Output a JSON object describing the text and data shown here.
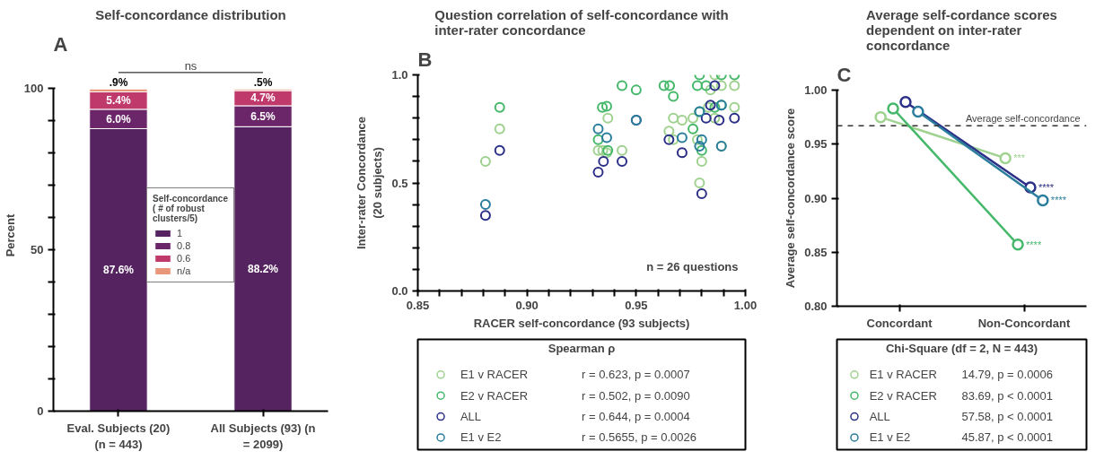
{
  "chart_data": [
    {
      "type": "bar",
      "stacked": true,
      "title": "Self-concordance distribution",
      "ylabel": "Percent",
      "legend_title": "Self-concordance ( # of robust clusters/5)",
      "legend": "center",
      "categories": [
        "Eval. Subjects (20) (n = 443)",
        "All Subjects (93) (n = 2099)"
      ],
      "ylim": [
        0,
        100
      ],
      "yticks": [
        0,
        {
          "value": 10,
          "label": null
        },
        {
          "value": 20,
          "label": null
        },
        {
          "value": 30,
          "label": null
        },
        {
          "value": 40,
          "label": null
        },
        50,
        {
          "value": 60,
          "label": null
        },
        {
          "value": 70,
          "label": null
        },
        {
          "value": 80,
          "label": null
        },
        {
          "value": 90,
          "label": null
        },
        100
      ],
      "series": [
        {
          "name": "1",
          "color": "#55235f",
          "values": [
            87.6,
            88.2
          ],
          "value_labels": [
            "87.6%",
            "88.2%"
          ]
        },
        {
          "name": "0.8",
          "color": "#6b2569",
          "values": [
            6.0,
            6.5
          ],
          "value_labels": [
            "6.0%",
            "6.5%"
          ]
        },
        {
          "name": "0.6",
          "color": "#bf3a6b",
          "values": [
            5.4,
            4.7
          ],
          "value_labels": [
            "5.4%",
            "4.7%"
          ]
        },
        {
          "name": "n/a",
          "color": "#e9967a",
          "values": [
            0.9,
            0.5
          ],
          "value_labels": [
            ".9%",
            ".5%"
          ]
        }
      ],
      "annotations": [
        "A",
        "ns"
      ],
      "grid": false
    },
    {
      "type": "scatter",
      "title": "Question correlation of self-concordance with inter-rater concordance",
      "xlabel": "RACER self-concordance (93 subjects)",
      "ylabel": "Inter-rater Concordance (20 subjects)",
      "legend_title": "Spearman ρ",
      "legend": "bottom",
      "marker": "circle",
      "grid": false,
      "xlim": [
        0.85,
        1.0
      ],
      "xticks": [
        {
          "value": 0.85,
          "label": "0.85"
        },
        {
          "value": 0.86,
          "label": null
        },
        {
          "value": 0.87,
          "label": null
        },
        {
          "value": 0.88,
          "label": null
        },
        {
          "value": 0.89,
          "label": null
        },
        {
          "value": 0.9,
          "label": "0.90"
        },
        {
          "value": 0.91,
          "label": null
        },
        {
          "value": 0.92,
          "label": null
        },
        {
          "value": 0.93,
          "label": null
        },
        {
          "value": 0.94,
          "label": null
        },
        {
          "value": 0.95,
          "label": "0.95"
        },
        {
          "value": 0.96,
          "label": null
        },
        {
          "value": 0.97,
          "label": null
        },
        {
          "value": 0.98,
          "label": null
        },
        {
          "value": 0.99,
          "label": null
        },
        {
          "value": 1.0,
          "label": "1.00"
        }
      ],
      "ylim": [
        0,
        1.0
      ],
      "yticks": [
        {
          "value": 0.0,
          "label": "0.0"
        },
        {
          "value": 0.1,
          "label": null
        },
        {
          "value": 0.2,
          "label": null
        },
        {
          "value": 0.3,
          "label": null
        },
        {
          "value": 0.4,
          "label": null
        },
        0.5,
        {
          "value": 0.6,
          "label": null
        },
        {
          "value": 0.7,
          "label": null
        },
        {
          "value": 0.8,
          "label": null
        },
        {
          "value": 0.9,
          "label": null
        },
        {
          "value": 1.0,
          "label": "1.0"
        }
      ],
      "series": [
        {
          "name": "E1 v RACER",
          "color": "#9fd18f",
          "x": [
            0.881,
            0.8875,
            0.9326,
            0.9347,
            0.937,
            0.9365,
            0.9435,
            0.95,
            0.965,
            0.967,
            0.971,
            0.967,
            0.976,
            0.978,
            0.979,
            0.98,
            0.984,
            0.986,
            0.989,
            0.986,
            0.989,
            0.995,
            0.995,
            0.983
          ],
          "values": [
            0.6,
            0.75,
            0.65,
            0.65,
            0.8,
            0.64,
            0.65,
            null,
            0.74,
            0.8,
            0.79,
            0.7,
            0.8,
            0.7,
            0.5,
            0.6,
            0.93,
            1.0,
            0.95,
            0.8,
            0.67,
            0.95,
            0.85,
            0.85
          ]
        },
        {
          "name": "E2 v RACER",
          "color": "#45b86a",
          "x": [
            0.8875,
            0.9345,
            0.9365,
            0.9326,
            0.937,
            0.9435,
            0.95,
            0.9627,
            0.9653,
            0.967,
            0.976,
            0.978,
            0.979,
            0.982,
            0.986,
            0.989,
            0.989,
            0.995,
            0.98,
            0.979
          ],
          "values": [
            0.85,
            0.85,
            0.855,
            0.7,
            0.65,
            0.95,
            0.93,
            0.95,
            0.95,
            0.9,
            0.75,
            0.95,
            1.0,
            0.95,
            0.85,
            1.0,
            0.86,
            1.0,
            0.65,
            0.83
          ]
        },
        {
          "name": "ALL",
          "color": "#2b2f87",
          "x": [
            0.881,
            0.8875,
            0.9326,
            0.935,
            0.9435,
            0.95,
            0.965,
            0.971,
            0.98,
            0.982,
            0.984,
            0.986,
            0.988,
            0.995
          ],
          "values": [
            0.35,
            0.65,
            0.55,
            0.6,
            0.6,
            0.79,
            0.7,
            0.64,
            0.45,
            0.8,
            0.86,
            0.95,
            0.79,
            0.8
          ]
        },
        {
          "name": "E1 v E2",
          "color": "#2a7d9c",
          "x": [
            0.881,
            0.9326,
            0.9365,
            0.95,
            0.971,
            0.98,
            0.979,
            0.989,
            0.989,
            0.979
          ],
          "values": [
            0.4,
            0.75,
            0.71,
            0.79,
            0.71,
            0.7,
            0.67,
            0.86,
            0.67,
            0.83
          ]
        }
      ],
      "annotations": [
        "B",
        "n = 26 questions",
        "r = 0.623, p = 0.0007",
        "r = 0.502, p = 0.0090",
        "r = 0.644, p = 0.0004",
        "r = 0.5655, p  = 0.0026"
      ]
    },
    {
      "type": "line",
      "title": "Average self-cordance scores dependent on inter-rater concordance",
      "ylabel": "Average self-concordance score",
      "legend_title": "Chi-Square (df = 2, N = 443)",
      "legend": "bottom",
      "marker": "circle",
      "line_style": "solid",
      "grid": false,
      "categories": [
        "Concordant",
        "Non-Concordant"
      ],
      "ylim": [
        0.8,
        1.0
      ],
      "yticks": [
        {
          "value": 0.8,
          "label": "0.80"
        },
        {
          "value": 0.85,
          "label": "0.85"
        },
        {
          "value": 0.9,
          "label": "0.90"
        },
        {
          "value": 0.95,
          "label": "0.95"
        },
        {
          "value": 1.0,
          "label": "1.00"
        }
      ],
      "ref_lines": [
        {
          "axis": "y",
          "value": 0.967,
          "label": "Average self-concordance",
          "line_style": "dashed",
          "color": "#333333"
        }
      ],
      "series": [
        {
          "name": "E1 v RACER",
          "color": "#9fd18f",
          "values": [
            0.975,
            0.937
          ]
        },
        {
          "name": "E2 v RACER",
          "color": "#45b86a",
          "values": [
            0.983,
            0.857
          ]
        },
        {
          "name": "ALL",
          "color": "#2b2f87",
          "values": [
            0.989,
            0.91
          ]
        },
        {
          "name": "E1 v E2",
          "color": "#2a7d9c",
          "values": [
            0.98,
            0.898
          ]
        }
      ],
      "annotations": [
        "C",
        "14.79, p = 0.0006",
        "83.69, p < 0.0001",
        "57.58, p < 0.0001",
        "45.87, p < 0.0001",
        "***",
        "****",
        "****",
        "****"
      ]
    }
  ]
}
